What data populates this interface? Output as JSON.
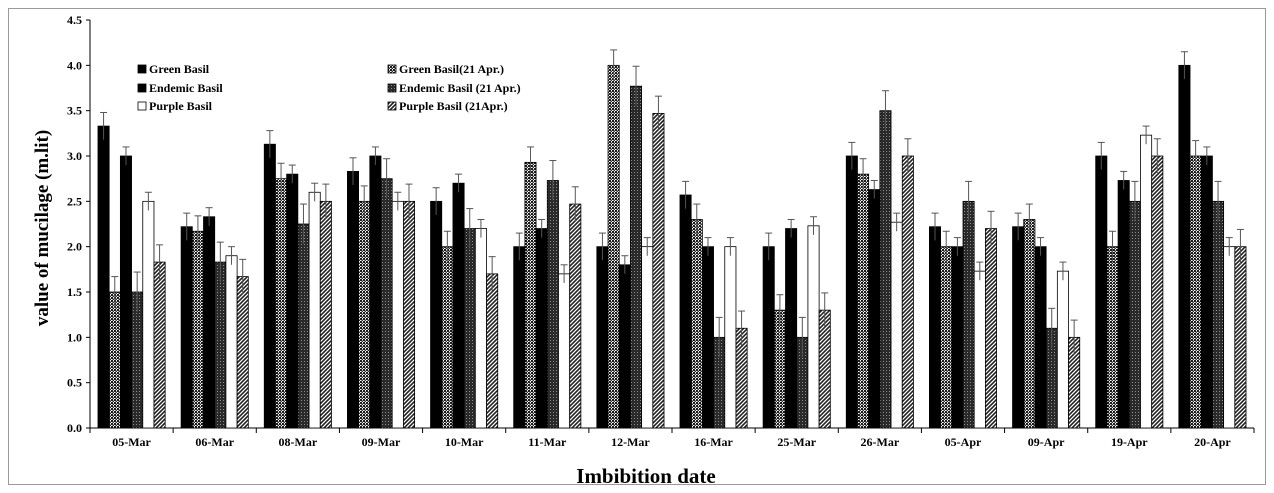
{
  "chart_data": {
    "type": "bar",
    "title": "",
    "xlabel": "Imbibition date",
    "ylabel": "value of mucilage (m.lit)",
    "ylim": [
      0,
      4.5
    ],
    "yticks": [
      "0.0",
      "0.5",
      "1.0",
      "1.5",
      "2.0",
      "2.5",
      "3.0",
      "3.5",
      "4.0",
      "4.5"
    ],
    "grid": false,
    "legend_position": "top-left",
    "categories": [
      "05-Mar",
      "06-Mar",
      "08-Mar",
      "09-Mar",
      "10-Mar",
      "11-Mar",
      "12-Mar",
      "16-Mar",
      "25-Mar",
      "26-Mar",
      "05-Apr",
      "09-Apr",
      "19-Apr",
      "20-Apr"
    ],
    "series": [
      {
        "name": "Green Basil",
        "pattern": "solid-black",
        "values": [
          3.33,
          2.22,
          3.13,
          2.83,
          2.5,
          2.0,
          2.0,
          2.57,
          2.0,
          3.0,
          2.22,
          2.22,
          3.0,
          4.0
        ],
        "errors": [
          0.15,
          0.15,
          0.15,
          0.15,
          0.15,
          0.15,
          0.15,
          0.15,
          0.15,
          0.15,
          0.15,
          0.15,
          0.15,
          0.15
        ]
      },
      {
        "name": "Green Basil(21 Apr.)",
        "pattern": "dense-dots",
        "values": [
          1.5,
          2.17,
          2.75,
          2.5,
          2.0,
          2.93,
          4.0,
          2.3,
          1.3,
          2.8,
          2.0,
          2.3,
          2.0,
          3.0
        ],
        "errors": [
          0.17,
          0.17,
          0.17,
          0.17,
          0.17,
          0.17,
          0.17,
          0.17,
          0.17,
          0.17,
          0.17,
          0.17,
          0.17,
          0.17
        ]
      },
      {
        "name": "Endemic Basil",
        "pattern": "solid-black",
        "values": [
          3.0,
          2.33,
          2.8,
          3.0,
          2.7,
          2.2,
          1.8,
          2.0,
          2.2,
          2.63,
          2.0,
          2.0,
          2.73,
          3.0
        ],
        "errors": [
          0.1,
          0.1,
          0.1,
          0.1,
          0.1,
          0.1,
          0.1,
          0.1,
          0.1,
          0.1,
          0.1,
          0.1,
          0.1,
          0.1
        ]
      },
      {
        "name": "Endemic Basil (21 Apr.)",
        "pattern": "dark-dots",
        "values": [
          1.5,
          1.83,
          2.25,
          2.75,
          2.2,
          2.73,
          3.77,
          1.0,
          1.0,
          3.5,
          2.5,
          1.1,
          2.5,
          2.5
        ],
        "errors": [
          0.22,
          0.22,
          0.22,
          0.22,
          0.22,
          0.22,
          0.22,
          0.22,
          0.22,
          0.22,
          0.22,
          0.22,
          0.22,
          0.22
        ]
      },
      {
        "name": "Purple Basil",
        "pattern": "white",
        "values": [
          2.5,
          1.9,
          2.6,
          2.5,
          2.2,
          1.7,
          2.0,
          2.0,
          2.23,
          2.27,
          1.73,
          1.73,
          3.23,
          2.0
        ],
        "errors": [
          0.1,
          0.1,
          0.1,
          0.1,
          0.1,
          0.1,
          0.1,
          0.1,
          0.1,
          0.1,
          0.1,
          0.1,
          0.1,
          0.1
        ]
      },
      {
        "name": "Purple Basil (21Apr.)",
        "pattern": "diagonal-hatch",
        "values": [
          1.83,
          1.67,
          2.5,
          2.5,
          1.7,
          2.47,
          3.47,
          1.1,
          1.3,
          3.0,
          2.2,
          1.0,
          3.0,
          2.0
        ],
        "errors": [
          0.19,
          0.19,
          0.19,
          0.19,
          0.19,
          0.19,
          0.19,
          0.19,
          0.19,
          0.19,
          0.19,
          0.19,
          0.19,
          0.19
        ]
      }
    ]
  }
}
